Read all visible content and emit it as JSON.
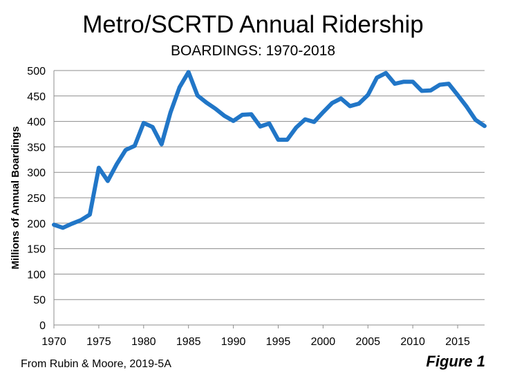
{
  "chart_data": {
    "type": "line",
    "title": "Metro/SCRTD Annual Ridership",
    "subtitle": "BOARDINGS: 1970-2018",
    "xlabel": "",
    "ylabel": "Millions of Annual Boardings",
    "xlim": [
      1970,
      2018
    ],
    "ylim": [
      0,
      500
    ],
    "yticks": [
      0,
      50,
      100,
      150,
      200,
      250,
      300,
      350,
      400,
      450,
      500
    ],
    "xticks": [
      1970,
      1975,
      1980,
      1985,
      1990,
      1995,
      2000,
      2005,
      2010,
      2015
    ],
    "grid": "horizontal",
    "line_color": "#2176c7",
    "series": [
      {
        "name": "Annual Boardings",
        "x": [
          1970,
          1971,
          1972,
          1973,
          1974,
          1975,
          1976,
          1977,
          1978,
          1979,
          1980,
          1981,
          1982,
          1983,
          1984,
          1985,
          1986,
          1987,
          1988,
          1989,
          1990,
          1991,
          1992,
          1993,
          1994,
          1995,
          1996,
          1997,
          1998,
          1999,
          2000,
          2001,
          2002,
          2003,
          2004,
          2005,
          2006,
          2007,
          2008,
          2009,
          2010,
          2011,
          2012,
          2013,
          2014,
          2015,
          2016,
          2017,
          2018
        ],
        "values": [
          197,
          191,
          199,
          206,
          217,
          309,
          283,
          316,
          344,
          352,
          397,
          389,
          355,
          418,
          467,
          497,
          451,
          437,
          425,
          411,
          401,
          413,
          414,
          390,
          396,
          364,
          364,
          388,
          404,
          399,
          418,
          436,
          445,
          430,
          435,
          452,
          486,
          495,
          474,
          478,
          478,
          460,
          461,
          472,
          474,
          452,
          429,
          403,
          391
        ]
      }
    ],
    "source": "From Rubin & Moore, 2019-5A",
    "figure_label": "Figure 1"
  }
}
